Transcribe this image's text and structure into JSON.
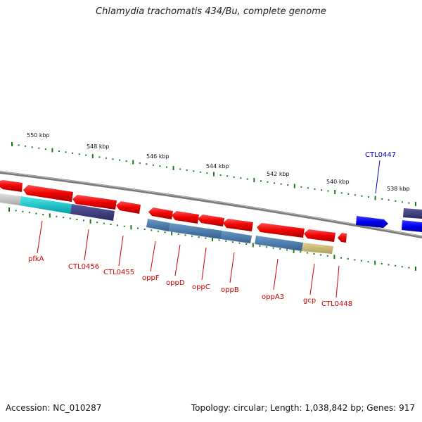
{
  "title": "Chlamydia trachomatis 434/Bu, complete genome",
  "footer": {
    "accession": "Accession: NC_010287",
    "summary": "Topology: circular; Length: 1,038,842 bp; Genes: 917"
  },
  "scale": {
    "ticks": [
      "550 kbp",
      "548 kbp",
      "546 kbp",
      "544 kbp",
      "542 kbp",
      "540 kbp",
      "538 kbp"
    ]
  },
  "gene_labels": [
    {
      "name": "pfkA",
      "color": "#cc0000"
    },
    {
      "name": "CTL0456",
      "color": "#cc0000"
    },
    {
      "name": "CTL0455",
      "color": "#cc0000"
    },
    {
      "name": "oppF",
      "color": "#cc0000"
    },
    {
      "name": "oppD",
      "color": "#cc0000"
    },
    {
      "name": "oppC",
      "color": "#cc0000"
    },
    {
      "name": "oppB",
      "color": "#cc0000"
    },
    {
      "name": "oppA3",
      "color": "#cc0000"
    },
    {
      "name": "gcp",
      "color": "#cc0000"
    },
    {
      "name": "CTL0448",
      "color": "#cc0000"
    },
    {
      "name": "CTL0447",
      "color": "#0000cc"
    }
  ],
  "colors": {
    "reverse_gene": "#ff0000",
    "forward_gene": "#0000ee",
    "backbone": "#888888",
    "tick": "#1a7a1a",
    "cog_cyan": "#00c8c8",
    "cog_navy": "#3a3a7a",
    "cog_steel": "#4a7aaa",
    "cog_khaki": "#c8b870",
    "cog_gray": "#c0c0c0"
  }
}
